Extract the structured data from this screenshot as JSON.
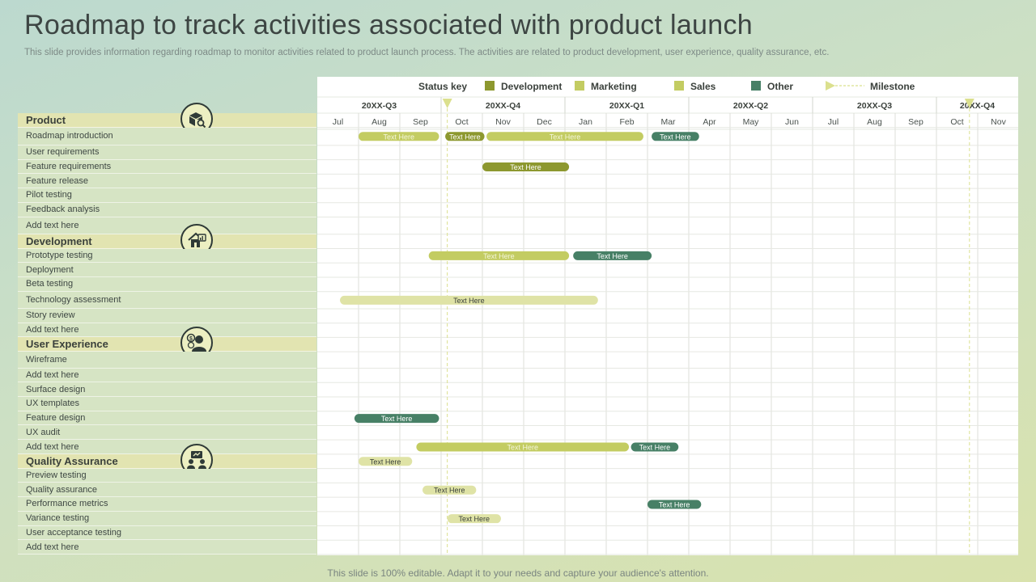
{
  "title": "Roadmap to track activities associated with product launch",
  "subtitle": "This slide provides information regarding roadmap to monitor activities related to product launch process. The activities are related to product development, user experience, quality assurance, etc.",
  "footer": "This slide is 100% editable. Adapt it to your needs and capture your audience's attention.",
  "colors": {
    "Development": "#8d982f",
    "Marketing": "#c3cc62",
    "Sales": "#dfe3a6",
    "Other": "#478066",
    "Milestone": "#dbe08e"
  },
  "status_key": {
    "label": "Status key",
    "items": [
      {
        "name": "Development",
        "color": "Development"
      },
      {
        "name": "Marketing",
        "color": "Marketing"
      },
      {
        "name": "Sales",
        "color": "Marketing"
      },
      {
        "name": "Other",
        "color": "Other"
      }
    ],
    "milestone": "Milestone"
  },
  "quarters": [
    {
      "label": "20XX-Q3",
      "start": 0,
      "end": 3
    },
    {
      "label": "20XX-Q4",
      "start": 3,
      "end": 6
    },
    {
      "label": "20XX-Q1",
      "start": 6,
      "end": 9
    },
    {
      "label": "20XX-Q2",
      "start": 9,
      "end": 12
    },
    {
      "label": "20XX-Q3",
      "start": 12,
      "end": 15
    },
    {
      "label": "20XX-Q4",
      "start": 15,
      "end": 17
    }
  ],
  "months": [
    "Jul",
    "Aug",
    "Sep",
    "Oct",
    "Nov",
    "Dec",
    "Jan",
    "Feb",
    "Mar",
    "Apr",
    "May",
    "Jun",
    "Jul",
    "Aug",
    "Sep",
    "Oct",
    "Nov"
  ],
  "milestones": [
    3.15,
    15.8
  ],
  "rows": [
    {
      "type": "cat",
      "label": "Product",
      "icon": "product-box-icon",
      "h": 1.0
    },
    {
      "type": "act",
      "label": "Roadmap introduction",
      "h": 1.25
    },
    {
      "type": "act",
      "label": "User requirements",
      "h": 1.0
    },
    {
      "type": "act",
      "label": "Feature requirements",
      "h": 1.0
    },
    {
      "type": "act",
      "label": "Feature release",
      "h": 1.0
    },
    {
      "type": "act",
      "label": "Pilot  testing",
      "h": 1.0
    },
    {
      "type": "act",
      "label": "Feedback analysis",
      "h": 1.0
    },
    {
      "type": "act",
      "label": "Add text here",
      "h": 1.2
    },
    {
      "type": "cat",
      "label": "Development",
      "icon": "development-house-icon",
      "h": 1.0
    },
    {
      "type": "act",
      "label": "Prototype testing",
      "h": 1.0
    },
    {
      "type": "act",
      "label": "Deployment",
      "h": 1.0
    },
    {
      "type": "act",
      "label": "Beta testing",
      "h": 1.0
    },
    {
      "type": "act",
      "label": "Technology assessment",
      "h": 1.2
    },
    {
      "type": "act",
      "label": "Story review",
      "h": 1.0
    },
    {
      "type": "act",
      "label": "Add text here",
      "h": 1.0
    },
    {
      "type": "cat",
      "label": "User Experience",
      "icon": "user-experience-person-icon",
      "h": 1.0
    },
    {
      "type": "act",
      "label": "Wireframe",
      "h": 1.15
    },
    {
      "type": "act",
      "label": "Add text here",
      "h": 1.0
    },
    {
      "type": "act",
      "label": "Surface design",
      "h": 1.0
    },
    {
      "type": "act",
      "label": "UX templates",
      "h": 1.0
    },
    {
      "type": "act",
      "label": "Feature design",
      "h": 1.0
    },
    {
      "type": "act",
      "label": "UX audit",
      "h": 1.0
    },
    {
      "type": "act",
      "label": "Add text here",
      "h": 1.0
    },
    {
      "type": "cat",
      "label": "Quality Assurance",
      "icon": "quality-team-icon",
      "h": 1.0
    },
    {
      "type": "act",
      "label": "Preview testing",
      "h": 1.0
    },
    {
      "type": "act",
      "label": "Quality assurance",
      "h": 1.0
    },
    {
      "type": "act",
      "label": "Performance metrics",
      "h": 1.0
    },
    {
      "type": "act",
      "label": "Variance testing",
      "h": 1.0
    },
    {
      "type": "act",
      "label": "User acceptance testing",
      "h": 1.0
    },
    {
      "type": "act",
      "label": "Add text here",
      "h": 1.0
    }
  ],
  "bars": [
    {
      "row": 1,
      "start": 1.0,
      "end": 2.95,
      "color": "Marketing",
      "text": "Text Here"
    },
    {
      "row": 1,
      "start": 3.1,
      "end": 4.05,
      "color": "Development",
      "text": "Text Here"
    },
    {
      "row": 1,
      "start": 4.1,
      "end": 7.9,
      "color": "Marketing",
      "text": "Text Here"
    },
    {
      "row": 1,
      "start": 8.1,
      "end": 9.25,
      "color": "Other",
      "text": "Text Here"
    },
    {
      "row": 3,
      "start": 4.0,
      "end": 6.1,
      "color": "Development",
      "text": "Text Here"
    },
    {
      "row": 9,
      "start": 2.7,
      "end": 6.1,
      "color": "Marketing",
      "text": "Text Here"
    },
    {
      "row": 9,
      "start": 6.2,
      "end": 8.1,
      "color": "Other",
      "text": "Text Here"
    },
    {
      "row": 12,
      "start": 0.55,
      "end": 6.8,
      "color": "Sales",
      "text": "Text Here"
    },
    {
      "row": 20,
      "start": 0.9,
      "end": 2.95,
      "color": "Other",
      "text": "Text Here"
    },
    {
      "row": 22,
      "start": 2.4,
      "end": 7.55,
      "color": "Marketing",
      "text": "Text Here"
    },
    {
      "row": 22,
      "start": 7.6,
      "end": 8.75,
      "color": "Other",
      "text": "Text Here"
    },
    {
      "row": 23,
      "start": 1.0,
      "end": 2.3,
      "color": "Sales",
      "text": "Text Here"
    },
    {
      "row": 25,
      "start": 2.55,
      "end": 3.85,
      "color": "Sales",
      "text": "Text Here"
    },
    {
      "row": 26,
      "start": 8.0,
      "end": 9.3,
      "color": "Other",
      "text": "Text Here"
    },
    {
      "row": 27,
      "start": 3.15,
      "end": 4.45,
      "color": "Sales",
      "text": "Text Here"
    }
  ]
}
